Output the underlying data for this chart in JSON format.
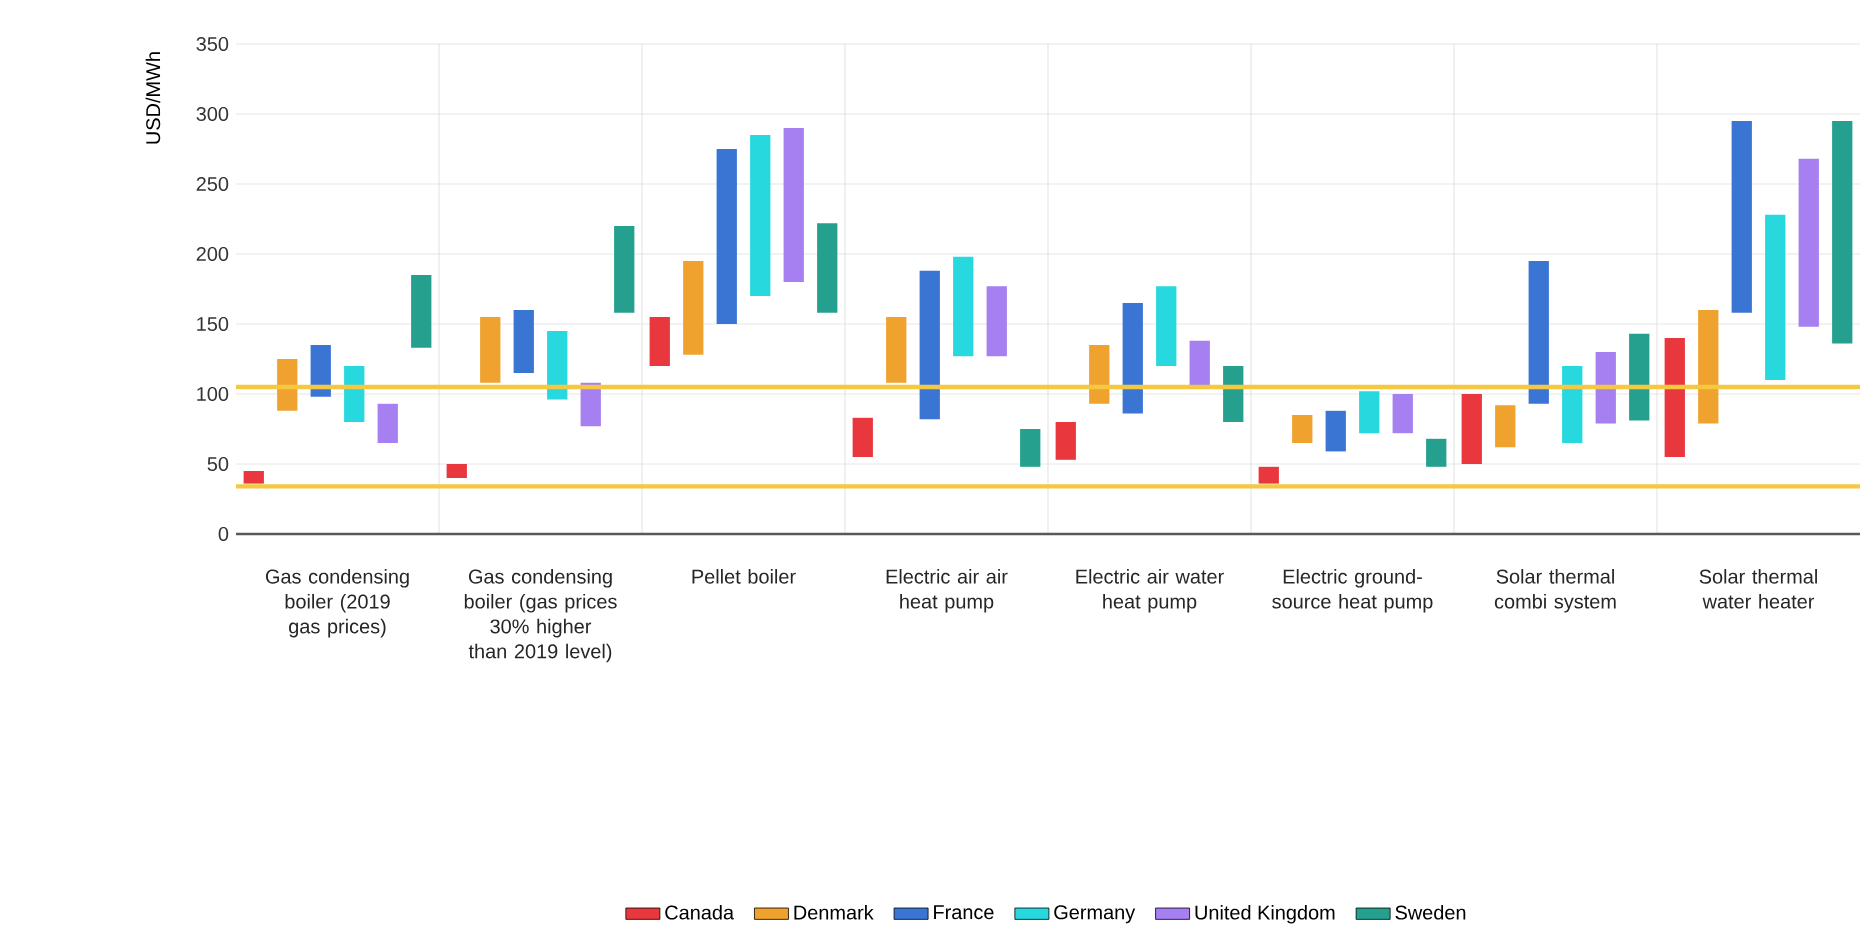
{
  "chart_data": {
    "type": "bar",
    "ylabel": "USD/MWh",
    "categories": [
      "Gas condensing boiler (2019 gas prices)",
      "Gas condensing boiler (gas prices 30% higher than 2019 level)",
      "Pellet boiler",
      "Electric air air heat pump",
      "Electric air water heat pump",
      "Electric ground-source heat pump",
      "Solar thermal combi system",
      "Solar thermal water heater"
    ],
    "series": [
      {
        "name": "Canada",
        "color": "#e8383d",
        "base": [
          36,
          40,
          120,
          55,
          53,
          36,
          50,
          55
        ],
        "values": [
          9,
          10,
          35,
          28,
          27,
          12,
          50,
          85
        ]
      },
      {
        "name": "Denmark",
        "color": "#f0a22e",
        "base": [
          88,
          108,
          128,
          108,
          93,
          65,
          62,
          79
        ],
        "values": [
          37,
          47,
          67,
          47,
          42,
          20,
          30,
          81
        ]
      },
      {
        "name": "France",
        "color": "#3a75d4",
        "base": [
          98,
          115,
          150,
          82,
          86,
          59,
          93,
          158
        ],
        "values": [
          37,
          45,
          125,
          106,
          79,
          29,
          102,
          137
        ]
      },
      {
        "name": "Germany",
        "color": "#27d8de",
        "base": [
          80,
          96,
          170,
          127,
          120,
          72,
          65,
          110
        ],
        "values": [
          40,
          49,
          115,
          71,
          57,
          30,
          55,
          118
        ]
      },
      {
        "name": "United Kingdom",
        "color": "#a67ff0",
        "base": [
          65,
          77,
          180,
          127,
          105,
          72,
          79,
          148
        ],
        "values": [
          28,
          31,
          110,
          50,
          33,
          28,
          51,
          120
        ]
      },
      {
        "name": "Sweden",
        "color": "#26a08e",
        "base": [
          133,
          158,
          158,
          48,
          80,
          48,
          81,
          136
        ],
        "values": [
          52,
          62,
          64,
          27,
          40,
          20,
          62,
          159
        ]
      }
    ],
    "ylim": [
      0,
      350
    ],
    "yticks": [
      0,
      50,
      100,
      150,
      200,
      250,
      300,
      350
    ],
    "ref_lines": [
      {
        "axis": "y",
        "value": 105,
        "color": "#f5c842"
      },
      {
        "axis": "y",
        "value": 34,
        "color": "#f5c842"
      }
    ],
    "grid": true,
    "legend": "bottom"
  }
}
